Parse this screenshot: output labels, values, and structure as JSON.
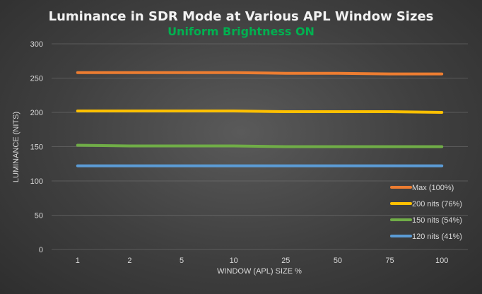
{
  "chart_data": {
    "type": "line",
    "title": "Luminance in SDR Mode at Various APL Window Sizes",
    "subtitle": "Uniform Brightness ON",
    "xlabel": "WINDOW (APL) SIZE %",
    "ylabel": "LUMINANCE (NITS)",
    "categories": [
      "1",
      "2",
      "5",
      "10",
      "25",
      "50",
      "75",
      "100"
    ],
    "ylim": [
      0,
      300
    ],
    "yticks": [
      0,
      50,
      100,
      150,
      200,
      250,
      300
    ],
    "grid": true,
    "legend_position": "bottom-right",
    "series": [
      {
        "name": "Max (100%)",
        "color": "#ed7d31",
        "values": [
          258,
          258,
          258,
          258,
          257,
          257,
          256,
          256
        ]
      },
      {
        "name": "200 nits (76%)",
        "color": "#ffc000",
        "values": [
          202,
          202,
          202,
          202,
          201,
          201,
          201,
          200
        ]
      },
      {
        "name": "150 nits (54%)",
        "color": "#70ad47",
        "values": [
          152,
          151,
          151,
          151,
          150,
          150,
          150,
          150
        ]
      },
      {
        "name": "120 nits (41%)",
        "color": "#5b9bd5",
        "values": [
          122,
          122,
          122,
          122,
          122,
          122,
          122,
          122
        ]
      }
    ],
    "subtitle_color": "#00b050"
  }
}
